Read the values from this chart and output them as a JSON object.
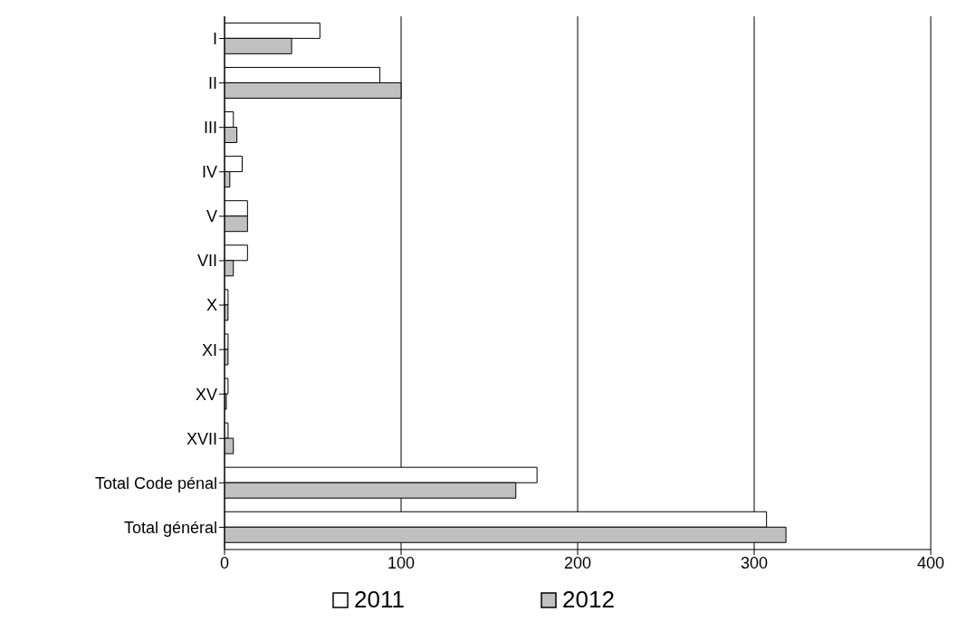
{
  "chart_data": {
    "type": "bar",
    "orientation": "horizontal",
    "categories": [
      "I",
      "II",
      "III",
      "IV",
      "V",
      "VII",
      "X",
      "XI",
      "XV",
      "XVII",
      "Total Code pénal",
      "Total général"
    ],
    "series": [
      {
        "name": "2011",
        "color": "#ffffff",
        "values": [
          54,
          88,
          5,
          10,
          13,
          13,
          2,
          2,
          2,
          2,
          177,
          307
        ]
      },
      {
        "name": "2012",
        "color": "#c0c0c0",
        "values": [
          38,
          100,
          7,
          3,
          13,
          5,
          2,
          2,
          1,
          5,
          165,
          318
        ]
      }
    ],
    "xlim": [
      0,
      400
    ],
    "xticks": [
      0,
      100,
      200,
      300,
      400
    ],
    "grid": "x",
    "legend": "bottom"
  }
}
